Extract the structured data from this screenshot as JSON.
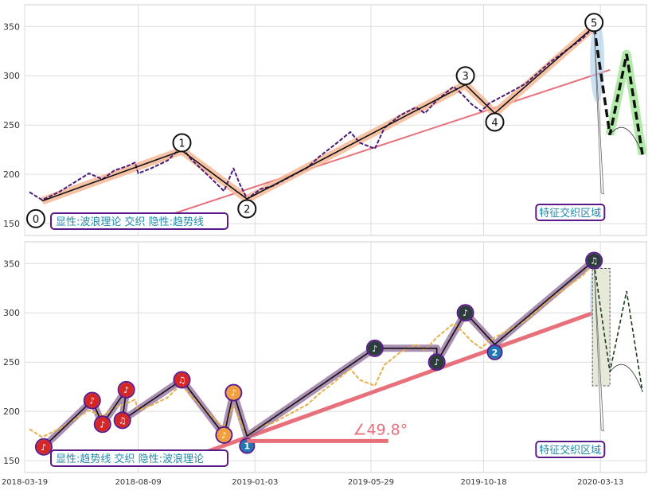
{
  "chart_data": [
    {
      "type": "line",
      "panel": "top",
      "xlim": [
        "2018-03-19",
        "2020-05-10"
      ],
      "ylim": [
        138,
        372
      ],
      "yticks": [
        150,
        200,
        250,
        300,
        350
      ],
      "grid": true,
      "price_color": "#4b1b7a",
      "price": [
        [
          "2018-03-25",
          182
        ],
        [
          "2018-04-10",
          174
        ],
        [
          "2018-05-01",
          182
        ],
        [
          "2018-05-25",
          194
        ],
        [
          "2018-06-08",
          201
        ],
        [
          "2018-06-25",
          195
        ],
        [
          "2018-07-10",
          204
        ],
        [
          "2018-07-25",
          208
        ],
        [
          "2018-08-05",
          212
        ],
        [
          "2018-08-09",
          201
        ],
        [
          "2018-08-25",
          206
        ],
        [
          "2018-09-15",
          214
        ],
        [
          "2018-09-25",
          222
        ],
        [
          "2018-10-03",
          227
        ],
        [
          "2018-10-15",
          215
        ],
        [
          "2018-10-28",
          205
        ],
        [
          "2018-11-10",
          195
        ],
        [
          "2018-11-25",
          183
        ],
        [
          "2018-12-07",
          206
        ],
        [
          "2018-12-15",
          190
        ],
        [
          "2018-12-24",
          175
        ],
        [
          "2019-01-10",
          185
        ],
        [
          "2019-01-25",
          188
        ],
        [
          "2019-02-15",
          197
        ],
        [
          "2019-03-10",
          207
        ],
        [
          "2019-03-25",
          218
        ],
        [
          "2019-04-15",
          231
        ],
        [
          "2019-05-03",
          243
        ],
        [
          "2019-05-15",
          232
        ],
        [
          "2019-06-03",
          226
        ],
        [
          "2019-06-15",
          247
        ],
        [
          "2019-07-05",
          260
        ],
        [
          "2019-07-25",
          268
        ],
        [
          "2019-08-05",
          262
        ],
        [
          "2019-08-20",
          275
        ],
        [
          "2019-09-10",
          289
        ],
        [
          "2019-09-20",
          282
        ],
        [
          "2019-10-03",
          271
        ],
        [
          "2019-10-15",
          264
        ],
        [
          "2019-10-25",
          272
        ],
        [
          "2019-11-15",
          281
        ],
        [
          "2019-12-10",
          292
        ],
        [
          "2020-01-10",
          314
        ],
        [
          "2020-02-01",
          327
        ],
        [
          "2020-02-20",
          338
        ],
        [
          "2020-02-28",
          345
        ]
      ],
      "wave_points": [
        {
          "label": "0",
          "x": "2018-04-02",
          "y": 155
        },
        {
          "label": "1",
          "x": "2018-10-03",
          "y": 232
        },
        {
          "label": "2",
          "x": "2018-12-24",
          "y": 165
        },
        {
          "label": "3",
          "x": "2019-09-25",
          "y": 300
        },
        {
          "label": "4",
          "x": "2019-11-01",
          "y": 253
        },
        {
          "label": "5",
          "x": "2020-03-05",
          "y": 354
        }
      ],
      "wave_path": [
        [
          "2018-04-10",
          173
        ],
        [
          "2018-10-03",
          224
        ],
        [
          "2018-12-24",
          175
        ],
        [
          "2019-09-25",
          291
        ],
        [
          "2019-11-01",
          262
        ],
        [
          "2020-03-05",
          350
        ]
      ],
      "trendline": [
        [
          "2018-08-15",
          150
        ],
        [
          "2020-03-25",
          306
        ]
      ],
      "forecast_path": [
        [
          "2020-03-05",
          350
        ],
        [
          "2020-03-25",
          240
        ],
        [
          "2020-04-15",
          322
        ],
        [
          "2020-05-05",
          220
        ]
      ],
      "legend_text": "显性:波浪理论 交织 隐性:趋势线",
      "zone_label": "特征交织区域"
    },
    {
      "type": "line",
      "panel": "bottom",
      "xlim": [
        "2018-03-19",
        "2020-05-10"
      ],
      "ylim": [
        138,
        372
      ],
      "yticks": [
        150,
        200,
        250,
        300,
        350
      ],
      "xticks": [
        "2018-03-19",
        "2018-08-09",
        "2019-01-03",
        "2019-05-29",
        "2019-10-18",
        "2020-03-13"
      ],
      "grid": true,
      "price_color": "#e8b04a",
      "price": [
        [
          "2018-03-25",
          182
        ],
        [
          "2018-04-10",
          174
        ],
        [
          "2018-05-01",
          182
        ],
        [
          "2018-05-25",
          194
        ],
        [
          "2018-06-08",
          201
        ],
        [
          "2018-06-25",
          195
        ],
        [
          "2018-07-10",
          204
        ],
        [
          "2018-07-25",
          208
        ],
        [
          "2018-08-05",
          212
        ],
        [
          "2018-08-09",
          201
        ],
        [
          "2018-08-25",
          206
        ],
        [
          "2018-09-15",
          214
        ],
        [
          "2018-09-25",
          222
        ],
        [
          "2018-10-03",
          227
        ],
        [
          "2018-10-15",
          215
        ],
        [
          "2018-10-28",
          205
        ],
        [
          "2018-11-10",
          195
        ],
        [
          "2018-11-25",
          183
        ],
        [
          "2018-12-07",
          206
        ],
        [
          "2018-12-15",
          190
        ],
        [
          "2018-12-24",
          175
        ],
        [
          "2019-01-10",
          185
        ],
        [
          "2019-01-25",
          188
        ],
        [
          "2019-02-15",
          197
        ],
        [
          "2019-03-10",
          207
        ],
        [
          "2019-03-25",
          218
        ],
        [
          "2019-04-15",
          231
        ],
        [
          "2019-05-03",
          243
        ],
        [
          "2019-05-15",
          232
        ],
        [
          "2019-06-03",
          226
        ],
        [
          "2019-06-15",
          247
        ],
        [
          "2019-07-05",
          260
        ],
        [
          "2019-07-25",
          268
        ],
        [
          "2019-08-05",
          262
        ],
        [
          "2019-08-20",
          275
        ],
        [
          "2019-09-10",
          289
        ],
        [
          "2019-09-20",
          282
        ],
        [
          "2019-10-03",
          271
        ],
        [
          "2019-10-15",
          264
        ],
        [
          "2019-10-25",
          272
        ],
        [
          "2019-11-15",
          281
        ],
        [
          "2019-12-10",
          292
        ],
        [
          "2020-01-10",
          314
        ],
        [
          "2020-02-01",
          327
        ],
        [
          "2020-02-20",
          338
        ],
        [
          "2020-02-28",
          345
        ]
      ],
      "markers": [
        {
          "label": "♪",
          "x": "2018-04-12",
          "y": 164,
          "color": "#d62728"
        },
        {
          "label": "♪",
          "x": "2018-06-12",
          "y": 211,
          "color": "#d62728"
        },
        {
          "label": "♪",
          "x": "2018-06-25",
          "y": 187,
          "color": "#d62728"
        },
        {
          "label": "♫",
          "x": "2018-07-20",
          "y": 191,
          "color": "#d62728"
        },
        {
          "label": "♪",
          "x": "2018-07-25",
          "y": 222,
          "color": "#d62728"
        },
        {
          "label": "♫",
          "x": "2018-10-03",
          "y": 232,
          "color": "#d62728"
        },
        {
          "label": "♪",
          "x": "2018-11-25",
          "y": 176,
          "color": "#f0a040"
        },
        {
          "label": "♪",
          "x": "2018-12-07",
          "y": 219,
          "color": "#f0a040"
        },
        {
          "label": "1",
          "x": "2018-12-24",
          "y": 165,
          "color": "#1f77b4"
        },
        {
          "label": "♪",
          "x": "2019-06-03",
          "y": 264,
          "color": "#2d3c3c"
        },
        {
          "label": "♪",
          "x": "2019-08-20",
          "y": 250,
          "color": "#2d3c3c"
        },
        {
          "label": "♪",
          "x": "2019-09-25",
          "y": 300,
          "color": "#2d3c3c"
        },
        {
          "label": "2",
          "x": "2019-11-01",
          "y": 260,
          "color": "#1f77b4"
        },
        {
          "label": "♫",
          "x": "2020-03-05",
          "y": 353,
          "color": "#2d3c3c"
        }
      ],
      "wave_path": [
        [
          "2018-04-12",
          164
        ],
        [
          "2018-06-12",
          211
        ],
        [
          "2018-06-25",
          187
        ],
        [
          "2018-07-25",
          222
        ],
        [
          "2018-07-20",
          191
        ],
        [
          "2018-10-03",
          232
        ],
        [
          "2018-11-25",
          176
        ],
        [
          "2018-12-07",
          219
        ],
        [
          "2018-12-24",
          175
        ],
        [
          "2019-06-03",
          264
        ],
        [
          "2019-08-20",
          264
        ],
        [
          "2019-08-20",
          250
        ],
        [
          "2019-09-25",
          300
        ],
        [
          "2019-11-01",
          268
        ],
        [
          "2020-03-05",
          353
        ]
      ],
      "trendline": [
        [
          "2018-10-03",
          150
        ],
        [
          "2020-03-25",
          306
        ]
      ],
      "angle_baseline": [
        [
          "2018-12-24",
          170
        ],
        [
          "2019-06-20",
          170
        ]
      ],
      "angle_label": "∠49.8°",
      "forecast_path": [
        [
          "2020-03-05",
          350
        ],
        [
          "2020-03-25",
          240
        ],
        [
          "2020-04-15",
          322
        ],
        [
          "2020-05-05",
          220
        ]
      ],
      "legend_text": "显性:趋势线 交织 隐性:波浪理论",
      "zone_label": "特征交织区域"
    }
  ]
}
